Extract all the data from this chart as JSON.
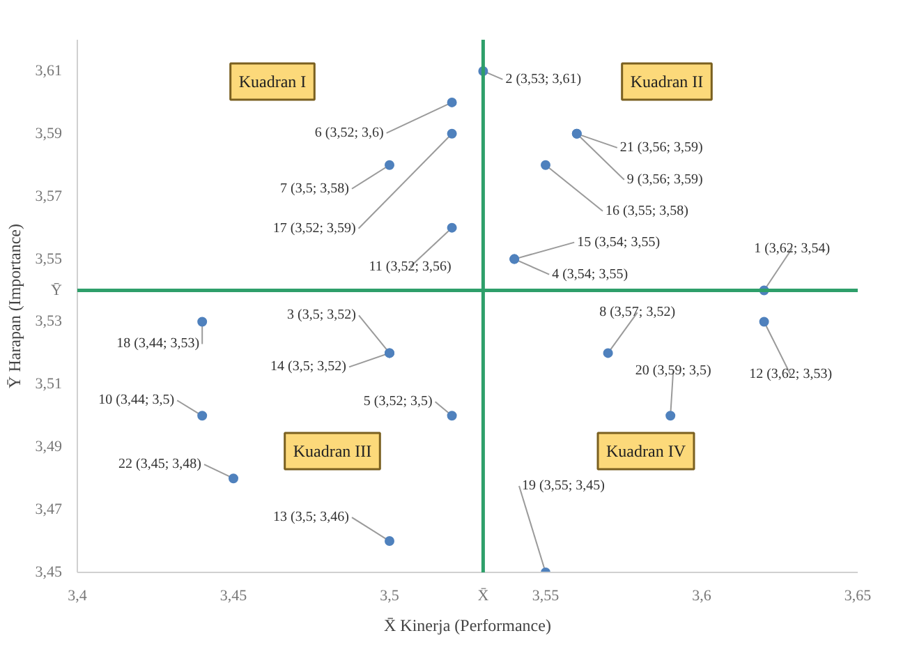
{
  "chart_data": {
    "type": "scatter",
    "xlabel": "X̄ Kinerja (Performance)",
    "ylabel": "Ȳ Harapan (Importance)",
    "x": [
      3.62,
      3.53,
      3.5,
      3.54,
      3.52,
      3.52,
      3.5,
      3.57,
      3.56,
      3.44,
      3.52,
      3.62,
      3.5,
      3.5,
      3.54,
      3.55,
      3.52,
      3.44,
      3.55,
      3.59,
      3.56,
      3.45
    ],
    "series": [
      {
        "color": "#4f81bd",
        "values": [
          3.54,
          3.61,
          3.52,
          3.55,
          3.5,
          3.6,
          3.58,
          3.52,
          3.59,
          3.5,
          3.56,
          3.53,
          3.46,
          3.52,
          3.55,
          3.58,
          3.59,
          3.53,
          3.45,
          3.5,
          3.59,
          3.48
        ],
        "value_labels": [
          "1 (3,62; 3,54)",
          "2 (3,53; 3,61)",
          "3 (3,5; 3,52)",
          "4 (3,54; 3,55)",
          "5 (3,52; 3,5)",
          "6 (3,52; 3,6)",
          "7 (3,5; 3,58)",
          "8 (3,57; 3,52)",
          "9 (3,56; 3,59)",
          "10 (3,44; 3,5)",
          "11 (3,52; 3,56)",
          "12 (3,62; 3,53)",
          "13 (3,5; 3,46)",
          "14 (3,5; 3,52)",
          "15 (3,54; 3,55)",
          "16 (3,55; 3,58)",
          "17 (3,52; 3,59)",
          "18 (3,44; 3,53)",
          "19 (3,55; 3,45)",
          "20 (3,59; 3,5)",
          "21 (3,56; 3,59)",
          "22 (3,45; 3,48)"
        ]
      }
    ],
    "marker": "circle",
    "grid": false,
    "xlim": [
      3.4,
      3.65
    ],
    "ylim": [
      3.45,
      3.62
    ],
    "xticks": [
      {
        "value": 3.4,
        "label": "3,4"
      },
      {
        "value": 3.45,
        "label": "3,45"
      },
      {
        "value": 3.5,
        "label": "3,5"
      },
      {
        "value": 3.55,
        "label": "3,55"
      },
      {
        "value": 3.6,
        "label": "3,6"
      },
      {
        "value": 3.65,
        "label": "3,65"
      }
    ],
    "yticks": [
      {
        "value": 3.45,
        "label": "3,45"
      },
      {
        "value": 3.47,
        "label": "3,47"
      },
      {
        "value": 3.49,
        "label": "3,49"
      },
      {
        "value": 3.51,
        "label": "3,51"
      },
      {
        "value": 3.53,
        "label": "3,53"
      },
      {
        "value": 3.55,
        "label": "3,55"
      },
      {
        "value": 3.57,
        "label": "3,57"
      },
      {
        "value": 3.59,
        "label": "3,59"
      },
      {
        "value": 3.61,
        "label": "3,61"
      }
    ],
    "ref_lines": [
      {
        "axis": "x",
        "value": 3.53,
        "label": "X̄",
        "color": "#2e9f6a"
      },
      {
        "axis": "y",
        "value": 3.54,
        "label": "Ȳ",
        "color": "#2e9f6a"
      }
    ],
    "annotations": [
      "Kuadran I",
      "Kuadran II",
      "Kuadran III",
      "Kuadran IV"
    ]
  }
}
